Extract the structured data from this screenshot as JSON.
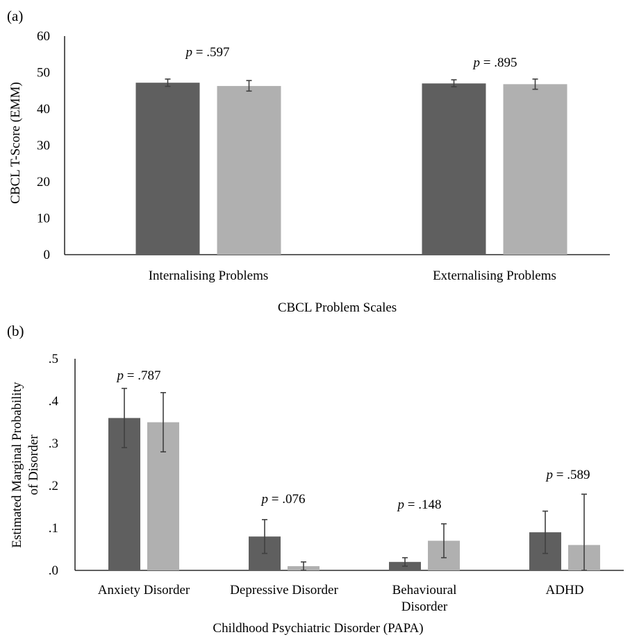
{
  "colors": {
    "series_dark": "#5f5f5f",
    "series_light": "#b0b0b0",
    "axis": "#000000",
    "error_bar": "#404040"
  },
  "chart_data": [
    {
      "panel_label": "(a)",
      "type": "bar",
      "categories": [
        "Internalising Problems",
        "Externalising Problems"
      ],
      "series": [
        {
          "values": [
            47.2,
            47.0
          ],
          "err_low": [
            46.2,
            46.1
          ],
          "err_high": [
            48.2,
            48.0
          ]
        },
        {
          "values": [
            46.3,
            46.8
          ],
          "err_low": [
            44.9,
            45.4
          ],
          "err_high": [
            47.8,
            48.2
          ]
        }
      ],
      "annotations": [
        "p = .597",
        "p = .895"
      ],
      "xlabel": "CBCL Problem Scales",
      "ylabel": "CBCL T-Score (EMM)",
      "ylim": [
        0,
        60
      ],
      "yticks": [
        "0",
        "10",
        "20",
        "30",
        "40",
        "50",
        "60"
      ],
      "grid": false
    },
    {
      "panel_label": "(b)",
      "type": "bar",
      "categories": [
        "Anxiety Disorder",
        "Depressive Disorder",
        "Behavioural Disorder",
        "ADHD"
      ],
      "category_lines": [
        [
          "Anxiety Disorder"
        ],
        [
          "Depressive Disorder"
        ],
        [
          "Behavioural",
          "Disorder"
        ],
        [
          "ADHD"
        ]
      ],
      "series": [
        {
          "values": [
            0.36,
            0.08,
            0.02,
            0.09
          ],
          "err_low": [
            0.29,
            0.04,
            0.01,
            0.04
          ],
          "err_high": [
            0.43,
            0.12,
            0.03,
            0.14
          ]
        },
        {
          "values": [
            0.35,
            0.01,
            0.07,
            0.06
          ],
          "err_low": [
            0.28,
            0.0,
            0.03,
            0.0
          ],
          "err_high": [
            0.42,
            0.02,
            0.11,
            0.18
          ]
        }
      ],
      "annotations": [
        "p = .787",
        "p = .076",
        "p = .148",
        "p = .589"
      ],
      "xlabel": "Childhood Psychiatric Disorder (PAPA)",
      "ylabel_lines": [
        "Estimated Marginal Probability",
        "of Disorder"
      ],
      "ylim": [
        0,
        0.5
      ],
      "yticks": [
        ".0",
        ".1",
        ".2",
        ".3",
        ".4",
        ".5"
      ],
      "grid": false
    }
  ]
}
